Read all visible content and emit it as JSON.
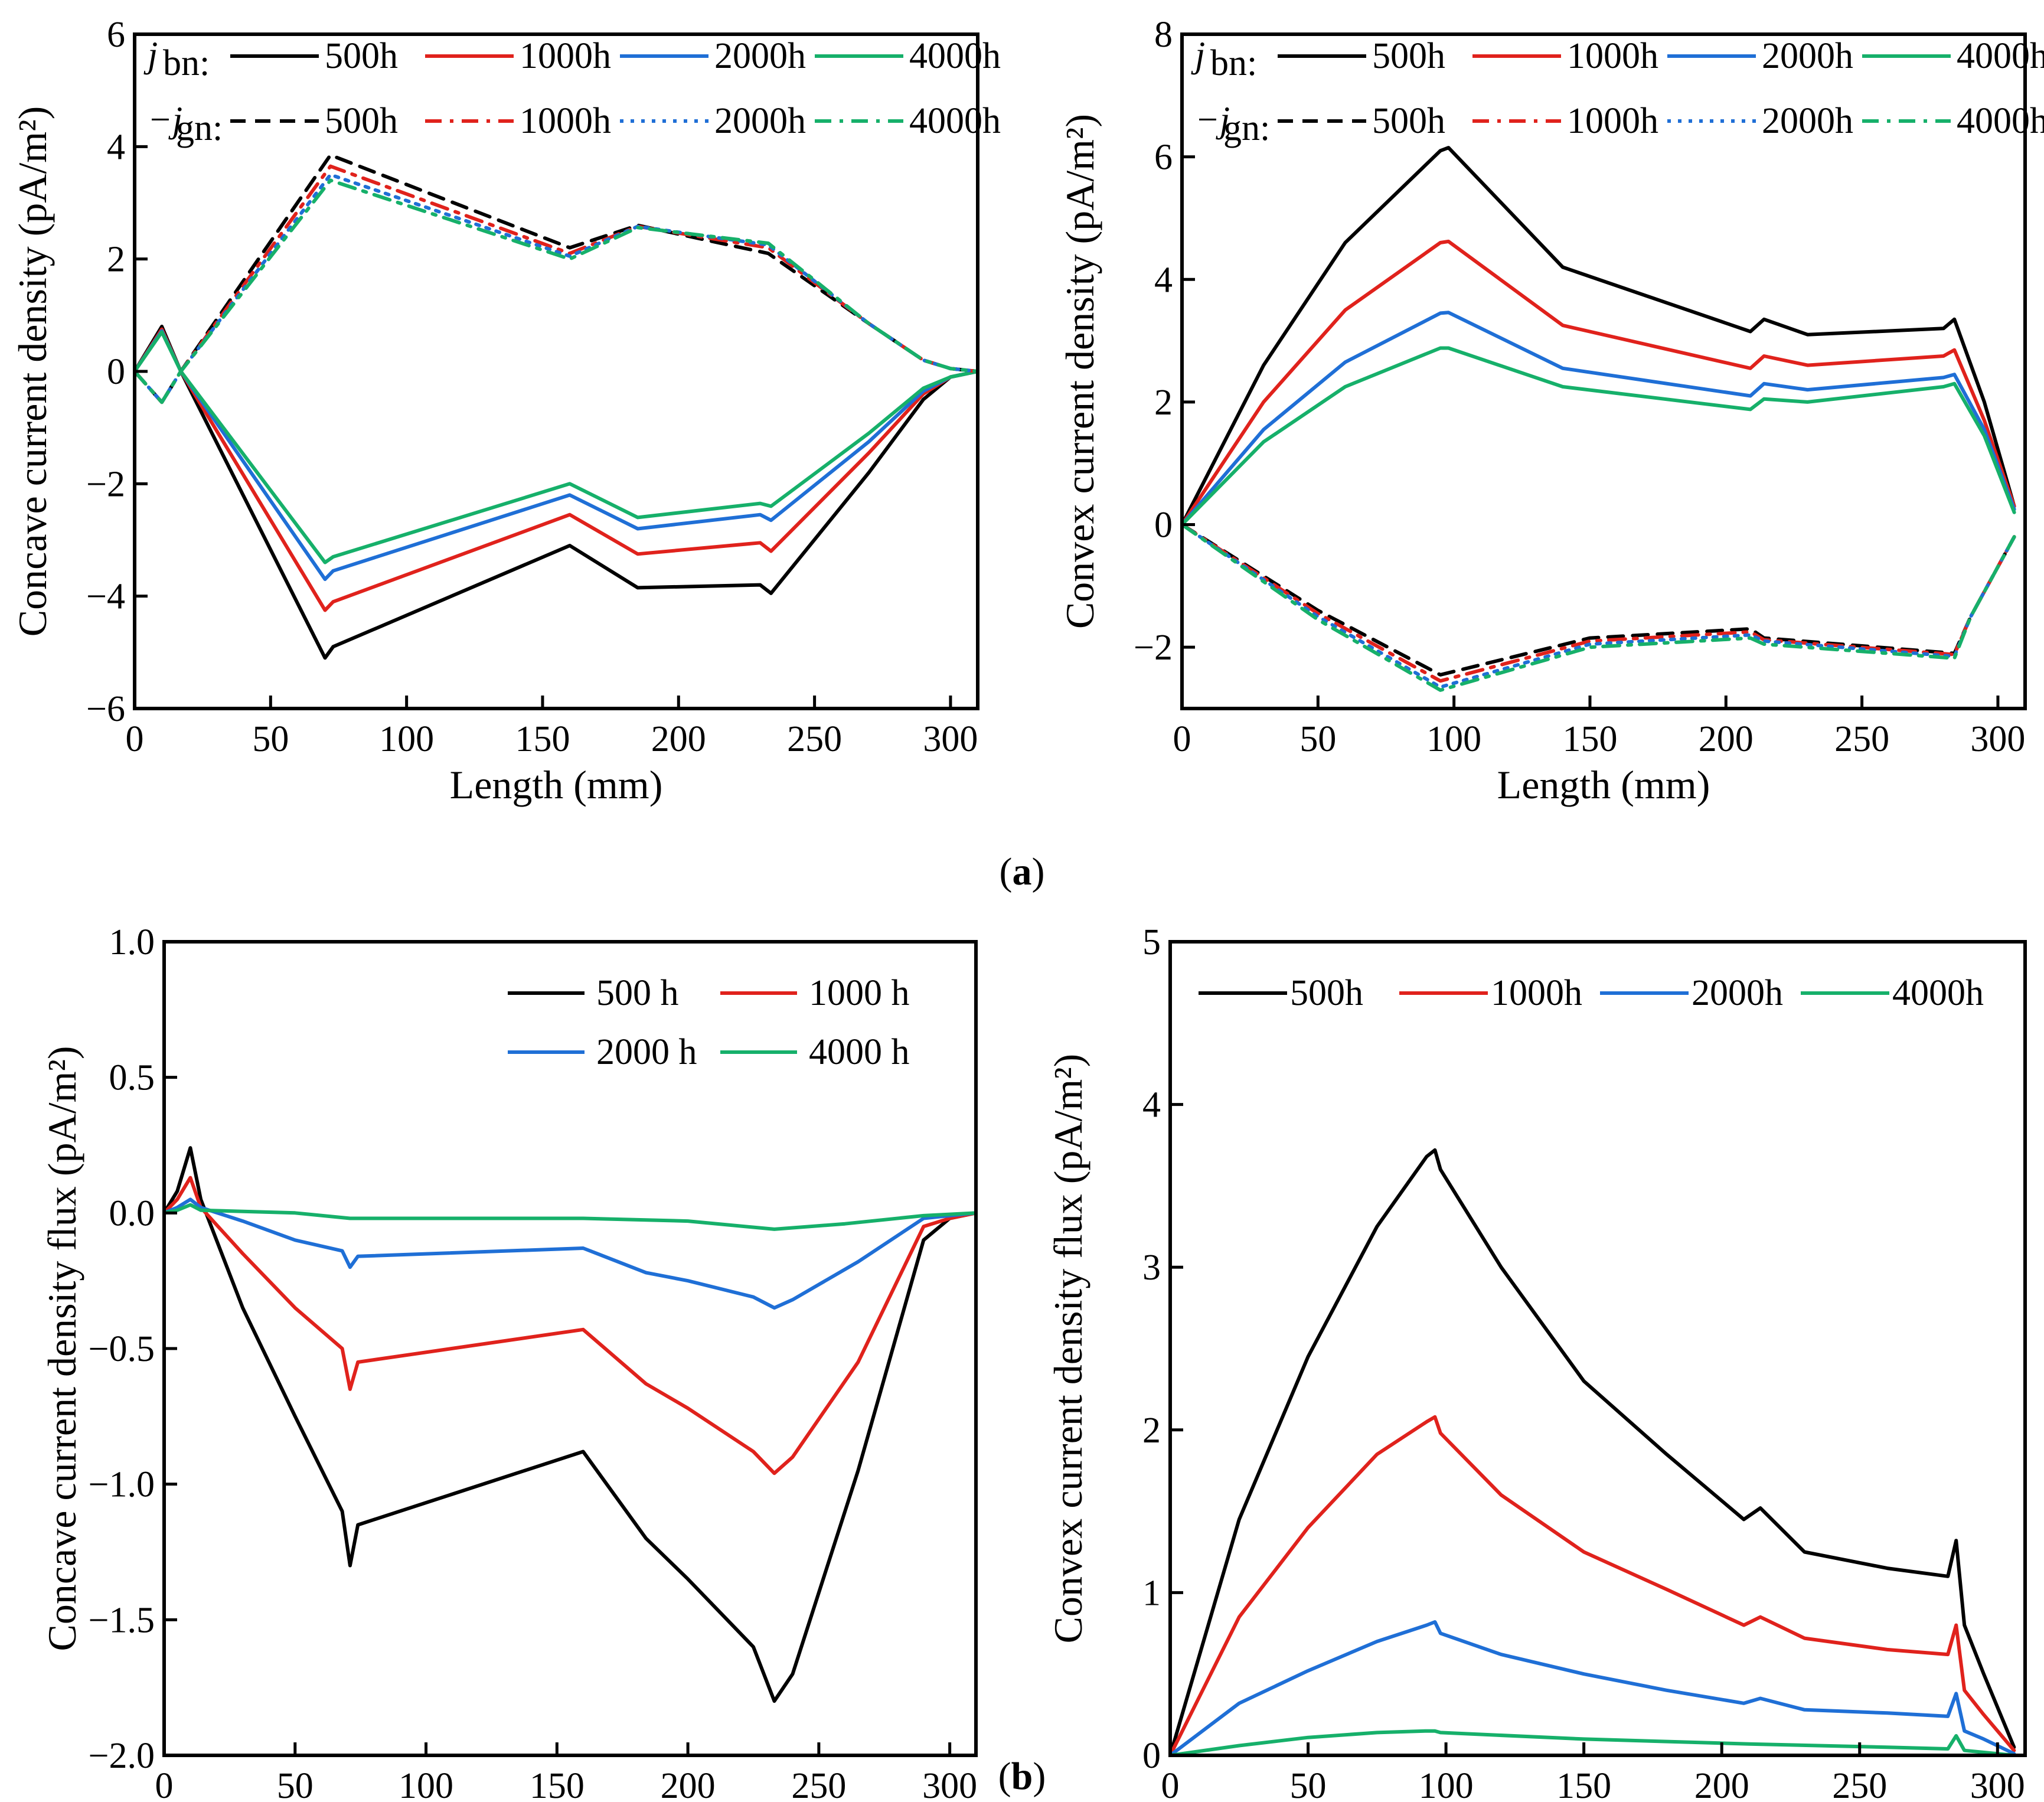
{
  "figure": {
    "caption_a": "a",
    "caption_b": "b"
  },
  "colors": {
    "500h": "#000000",
    "1000h": "#e0221c",
    "2000h": "#1f6fd6",
    "4000h": "#16b06a"
  },
  "chart_data": [
    {
      "id": "a-left",
      "type": "line",
      "xlabel": "Length (mm)",
      "ylabel": "Concave current density (pA/m²)",
      "xlim": [
        0,
        310
      ],
      "ylim": [
        -6,
        6
      ],
      "xticks": [
        0,
        50,
        100,
        150,
        200,
        250,
        300
      ],
      "yticks": [
        -6,
        -4,
        -2,
        0,
        2,
        4,
        6
      ],
      "ytick_labels": [
        "−6",
        "−4",
        "−2",
        "0",
        "2",
        "4",
        "6"
      ],
      "legend": {
        "row1_prefix": "j",
        "row1_sub": "bn",
        "row2_prefix": "−j",
        "row2_sub": "gn",
        "labels": [
          "500h",
          "1000h",
          "2000h",
          "4000h"
        ]
      },
      "series": [
        {
          "name": "j_bn 500h",
          "color": "500h",
          "style": "solid",
          "x": [
            0,
            10,
            17,
            70,
            73,
            160,
            185,
            230,
            234,
            270,
            290,
            300,
            310
          ],
          "y": [
            0,
            0.8,
            0,
            -5.1,
            -4.9,
            -3.1,
            -3.85,
            -3.8,
            -3.95,
            -1.8,
            -0.5,
            -0.1,
            0
          ]
        },
        {
          "name": "j_bn 1000h",
          "color": "1000h",
          "style": "solid",
          "x": [
            0,
            10,
            17,
            70,
            73,
            160,
            185,
            230,
            234,
            270,
            290,
            300,
            310
          ],
          "y": [
            0,
            0.75,
            0,
            -4.25,
            -4.1,
            -2.55,
            -3.25,
            -3.05,
            -3.2,
            -1.45,
            -0.4,
            -0.1,
            0
          ]
        },
        {
          "name": "j_bn 2000h",
          "color": "2000h",
          "style": "solid",
          "x": [
            0,
            10,
            17,
            70,
            73,
            160,
            185,
            230,
            234,
            270,
            290,
            300,
            310
          ],
          "y": [
            0,
            0.72,
            0,
            -3.7,
            -3.55,
            -2.2,
            -2.8,
            -2.55,
            -2.65,
            -1.25,
            -0.35,
            -0.1,
            0
          ]
        },
        {
          "name": "j_bn 4000h",
          "color": "4000h",
          "style": "solid",
          "x": [
            0,
            10,
            17,
            70,
            73,
            160,
            185,
            230,
            234,
            270,
            290,
            300,
            310
          ],
          "y": [
            0,
            0.7,
            0,
            -3.4,
            -3.3,
            -2.0,
            -2.6,
            -2.35,
            -2.4,
            -1.1,
            -0.3,
            -0.1,
            0
          ]
        },
        {
          "name": "-j_gn 500h",
          "color": "500h",
          "style": "dash",
          "x": [
            0,
            10,
            17,
            72,
            160,
            185,
            233,
            270,
            290,
            300,
            310
          ],
          "y": [
            0,
            -0.55,
            0,
            3.85,
            2.2,
            2.6,
            2.1,
            0.85,
            0.2,
            0.05,
            0
          ]
        },
        {
          "name": "-j_gn 1000h",
          "color": "1000h",
          "style": "dashdot",
          "x": [
            0,
            10,
            17,
            72,
            160,
            185,
            233,
            270,
            290,
            300,
            310
          ],
          "y": [
            0,
            -0.55,
            0,
            3.65,
            2.1,
            2.58,
            2.2,
            0.85,
            0.2,
            0.05,
            0
          ]
        },
        {
          "name": "-j_gn 2000h",
          "color": "2000h",
          "style": "dot",
          "x": [
            0,
            10,
            17,
            72,
            160,
            185,
            233,
            270,
            290,
            300,
            310
          ],
          "y": [
            0,
            -0.55,
            0,
            3.5,
            2.05,
            2.58,
            2.25,
            0.85,
            0.2,
            0.05,
            0
          ]
        },
        {
          "name": "-j_gn 4000h",
          "color": "4000h",
          "style": "dashdot",
          "x": [
            0,
            10,
            17,
            72,
            160,
            185,
            233,
            270,
            290,
            300,
            310
          ],
          "y": [
            0,
            -0.55,
            0,
            3.4,
            2.0,
            2.56,
            2.28,
            0.85,
            0.2,
            0.05,
            0
          ]
        }
      ]
    },
    {
      "id": "a-right",
      "type": "line",
      "xlabel": "Length (mm)",
      "ylabel": "Convex current density (pA/m²)",
      "xlim": [
        0,
        310
      ],
      "ylim": [
        -3,
        8
      ],
      "xticks": [
        0,
        50,
        100,
        150,
        200,
        250,
        300
      ],
      "yticks": [
        -2,
        0,
        2,
        4,
        6,
        8
      ],
      "ytick_labels": [
        "−2",
        "0",
        "2",
        "4",
        "6",
        "8"
      ],
      "legend": {
        "row1_prefix": "j",
        "row1_sub": "bn",
        "row2_prefix": "−j",
        "row2_sub": "gn",
        "labels": [
          "500h",
          "1000h",
          "2000h",
          "4000h"
        ]
      },
      "series": [
        {
          "name": "j_bn 500h",
          "color": "500h",
          "style": "solid",
          "x": [
            0,
            30,
            60,
            95,
            98,
            140,
            209,
            214,
            230,
            280,
            284,
            295,
            306
          ],
          "y": [
            0,
            2.6,
            4.6,
            6.1,
            6.15,
            4.2,
            3.15,
            3.35,
            3.1,
            3.2,
            3.35,
            2.0,
            0.3
          ]
        },
        {
          "name": "j_bn 1000h",
          "color": "1000h",
          "style": "solid",
          "x": [
            0,
            30,
            60,
            95,
            98,
            140,
            209,
            214,
            230,
            280,
            284,
            295,
            306
          ],
          "y": [
            0,
            2.0,
            3.5,
            4.6,
            4.62,
            3.25,
            2.55,
            2.75,
            2.6,
            2.75,
            2.85,
            1.7,
            0.3
          ]
        },
        {
          "name": "j_bn 2000h",
          "color": "2000h",
          "style": "solid",
          "x": [
            0,
            30,
            60,
            95,
            98,
            140,
            209,
            214,
            230,
            280,
            284,
            295,
            306
          ],
          "y": [
            0,
            1.55,
            2.65,
            3.45,
            3.46,
            2.55,
            2.1,
            2.3,
            2.2,
            2.4,
            2.45,
            1.55,
            0.25
          ]
        },
        {
          "name": "j_bn 4000h",
          "color": "4000h",
          "style": "solid",
          "x": [
            0,
            30,
            60,
            95,
            98,
            140,
            209,
            214,
            230,
            280,
            284,
            295,
            306
          ],
          "y": [
            0,
            1.35,
            2.25,
            2.88,
            2.88,
            2.25,
            1.88,
            2.05,
            2.0,
            2.25,
            2.3,
            1.45,
            0.2
          ]
        },
        {
          "name": "-j_gn 500h",
          "color": "500h",
          "style": "dash",
          "x": [
            0,
            50,
            95,
            150,
            209,
            214,
            284,
            290,
            306
          ],
          "y": [
            0,
            -1.4,
            -2.45,
            -1.85,
            -1.7,
            -1.85,
            -2.1,
            -1.5,
            -0.2
          ]
        },
        {
          "name": "-j_gn 1000h",
          "color": "1000h",
          "style": "dashdot",
          "x": [
            0,
            50,
            95,
            150,
            209,
            214,
            284,
            290,
            306
          ],
          "y": [
            0,
            -1.45,
            -2.55,
            -1.9,
            -1.75,
            -1.88,
            -2.12,
            -1.5,
            -0.2
          ]
        },
        {
          "name": "-j_gn 2000h",
          "color": "2000h",
          "style": "dot",
          "x": [
            0,
            50,
            95,
            150,
            209,
            214,
            284,
            290,
            306
          ],
          "y": [
            0,
            -1.5,
            -2.65,
            -1.95,
            -1.8,
            -1.9,
            -2.15,
            -1.5,
            -0.2
          ]
        },
        {
          "name": "-j_gn 4000h",
          "color": "4000h",
          "style": "dashdot",
          "x": [
            0,
            50,
            95,
            150,
            209,
            214,
            284,
            290,
            306
          ],
          "y": [
            0,
            -1.55,
            -2.7,
            -2.0,
            -1.85,
            -1.95,
            -2.18,
            -1.5,
            -0.2
          ]
        }
      ]
    },
    {
      "id": "b-left",
      "type": "line",
      "xlabel": "Length (mm)",
      "ylabel": "Concave current density flux (pA/m²)",
      "xlim": [
        0,
        310
      ],
      "ylim": [
        -2.0,
        1.0
      ],
      "xticks": [
        0,
        50,
        100,
        150,
        200,
        250,
        300
      ],
      "yticks": [
        -2.0,
        -1.5,
        -1.0,
        -0.5,
        0.0,
        0.5,
        1.0
      ],
      "ytick_labels": [
        "−2.0",
        "−1.5",
        "−1.0",
        "−0.5",
        "0.0",
        "0.5",
        "1.0"
      ],
      "legend": {
        "labels": [
          "500 h",
          "1000 h",
          "2000 h",
          "4000 h"
        ]
      },
      "series": [
        {
          "name": "500 h",
          "color": "500h",
          "style": "solid",
          "x": [
            0,
            5,
            10,
            14,
            30,
            50,
            68,
            71,
            74,
            160,
            184,
            200,
            225,
            233,
            240,
            265,
            290,
            300,
            310
          ],
          "y": [
            0,
            0.08,
            0.24,
            0.05,
            -0.35,
            -0.75,
            -1.1,
            -1.3,
            -1.15,
            -0.88,
            -1.2,
            -1.35,
            -1.6,
            -1.8,
            -1.7,
            -0.95,
            -0.1,
            -0.02,
            0
          ]
        },
        {
          "name": "1000 h",
          "color": "1000h",
          "style": "solid",
          "x": [
            0,
            5,
            10,
            14,
            30,
            50,
            68,
            71,
            74,
            160,
            184,
            200,
            225,
            233,
            240,
            265,
            290,
            300,
            310
          ],
          "y": [
            0,
            0.05,
            0.13,
            0.02,
            -0.15,
            -0.35,
            -0.5,
            -0.65,
            -0.55,
            -0.43,
            -0.63,
            -0.72,
            -0.88,
            -0.96,
            -0.9,
            -0.55,
            -0.05,
            -0.02,
            0
          ]
        },
        {
          "name": "2000 h",
          "color": "2000h",
          "style": "solid",
          "x": [
            0,
            5,
            10,
            14,
            30,
            50,
            68,
            71,
            74,
            160,
            184,
            200,
            225,
            233,
            240,
            265,
            290,
            300,
            310
          ],
          "y": [
            0,
            0.02,
            0.05,
            0.02,
            -0.03,
            -0.1,
            -0.14,
            -0.2,
            -0.16,
            -0.13,
            -0.22,
            -0.25,
            -0.31,
            -0.35,
            -0.32,
            -0.18,
            -0.02,
            -0.01,
            0
          ]
        },
        {
          "name": "4000 h",
          "color": "4000h",
          "style": "solid",
          "x": [
            0,
            5,
            10,
            14,
            50,
            71,
            100,
            160,
            200,
            233,
            260,
            290,
            310
          ],
          "y": [
            0,
            0.01,
            0.03,
            0.01,
            0.0,
            -0.02,
            -0.02,
            -0.02,
            -0.03,
            -0.06,
            -0.04,
            -0.01,
            0
          ]
        }
      ]
    },
    {
      "id": "b-right",
      "type": "line",
      "xlabel": "Length (mm)",
      "ylabel": "Convex current density flux (pA/m²)",
      "xlim": [
        0,
        310
      ],
      "ylim": [
        0,
        5
      ],
      "xticks": [
        0,
        50,
        100,
        150,
        200,
        250,
        300
      ],
      "yticks": [
        0,
        1,
        2,
        3,
        4,
        5
      ],
      "ytick_labels": [
        "0",
        "1",
        "2",
        "3",
        "4",
        "5"
      ],
      "legend": {
        "labels": [
          "500h",
          "1000h",
          "2000h",
          "4000h"
        ]
      },
      "series": [
        {
          "name": "500h",
          "color": "500h",
          "style": "solid",
          "x": [
            0,
            25,
            50,
            75,
            93,
            96,
            98,
            120,
            150,
            180,
            208,
            214,
            230,
            260,
            282,
            285,
            288,
            295,
            306
          ],
          "y": [
            0,
            1.45,
            2.45,
            3.25,
            3.68,
            3.72,
            3.6,
            3.0,
            2.3,
            1.85,
            1.45,
            1.52,
            1.25,
            1.15,
            1.1,
            1.32,
            0.8,
            0.5,
            0.05
          ]
        },
        {
          "name": "1000h",
          "color": "1000h",
          "style": "solid",
          "x": [
            0,
            25,
            50,
            75,
            93,
            96,
            98,
            120,
            150,
            180,
            208,
            214,
            230,
            260,
            282,
            285,
            288,
            295,
            306
          ],
          "y": [
            0,
            0.85,
            1.4,
            1.85,
            2.05,
            2.08,
            1.98,
            1.6,
            1.25,
            1.02,
            0.8,
            0.85,
            0.72,
            0.65,
            0.62,
            0.8,
            0.4,
            0.25,
            0.03
          ]
        },
        {
          "name": "2000h",
          "color": "2000h",
          "style": "solid",
          "x": [
            0,
            25,
            50,
            75,
            93,
            96,
            98,
            120,
            150,
            180,
            208,
            214,
            230,
            260,
            282,
            285,
            288,
            295,
            306
          ],
          "y": [
            0,
            0.32,
            0.52,
            0.7,
            0.8,
            0.82,
            0.75,
            0.62,
            0.5,
            0.4,
            0.32,
            0.35,
            0.28,
            0.26,
            0.24,
            0.38,
            0.15,
            0.1,
            0.01
          ]
        },
        {
          "name": "4000h",
          "color": "4000h",
          "style": "solid",
          "x": [
            0,
            25,
            50,
            75,
            93,
            96,
            98,
            150,
            210,
            260,
            282,
            285,
            288,
            306
          ],
          "y": [
            0,
            0.06,
            0.11,
            0.14,
            0.15,
            0.15,
            0.14,
            0.1,
            0.07,
            0.05,
            0.04,
            0.12,
            0.03,
            0.0
          ]
        }
      ]
    }
  ]
}
